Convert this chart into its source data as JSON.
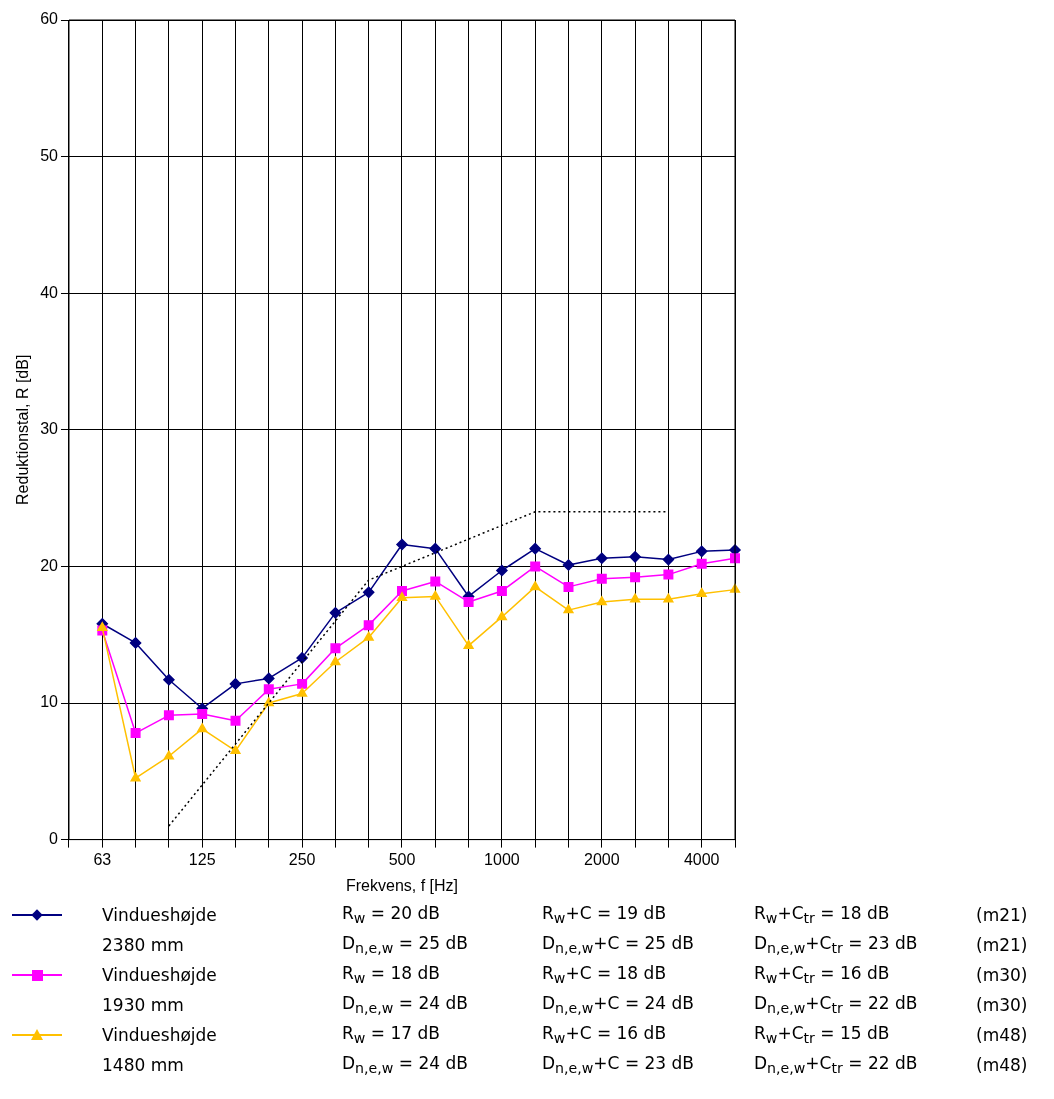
{
  "chart_data": {
    "type": "line",
    "xlabel": "Frekvens, f [Hz]",
    "ylabel": "Reduktionstal, R [dB]",
    "categories": [
      null,
      "63",
      null,
      null,
      "125",
      null,
      null,
      "250",
      null,
      null,
      "500",
      null,
      null,
      "1000",
      null,
      null,
      "2000",
      null,
      null,
      "4000",
      null
    ],
    "series": [
      {
        "name": "Vindueshøjde 2380 mm",
        "color": "#000080",
        "marker": "diamond",
        "values": [
          null,
          15.8,
          14.4,
          11.7,
          9.6,
          11.4,
          11.8,
          13.3,
          16.6,
          18.1,
          21.6,
          21.3,
          17.8,
          19.7,
          21.3,
          20.1,
          20.6,
          20.7,
          20.5,
          21.1,
          21.2
        ]
      },
      {
        "name": "Vindueshøjde 1930 mm",
        "color": "#ff00ff",
        "marker": "square",
        "values": [
          null,
          15.3,
          7.8,
          9.1,
          9.2,
          8.7,
          11.0,
          11.4,
          14.0,
          15.7,
          18.2,
          18.9,
          17.4,
          18.2,
          20.0,
          18.5,
          19.1,
          19.2,
          19.4,
          20.2,
          20.6
        ]
      },
      {
        "name": "Vindueshøjde 1480 mm",
        "color": "#ffc000",
        "marker": "triangle",
        "values": [
          null,
          15.5,
          4.5,
          6.1,
          8.1,
          6.5,
          10.0,
          10.7,
          13.0,
          14.8,
          17.7,
          17.8,
          14.2,
          16.3,
          18.5,
          16.8,
          17.4,
          17.6,
          17.6,
          18.0,
          18.3
        ]
      },
      {
        "color": "#000000",
        "marker": "none",
        "line_style": "dotted",
        "values": [
          null,
          null,
          null,
          1,
          4,
          7,
          10,
          13,
          16,
          19,
          20,
          21,
          22,
          23,
          24,
          24,
          24,
          24,
          24,
          null,
          null
        ]
      }
    ],
    "ylim": [
      0,
      60
    ],
    "yticks": [
      0,
      10,
      20,
      30,
      40,
      50,
      60
    ],
    "grid": true,
    "legend": "bottom",
    "annotations": [
      "R$_{w}$ = 20 dB",
      "R$_{w}$+C = 19 dB",
      "R$_{w}$+C$_{tr}$ = 18 dB",
      "(m21)",
      "D$_{n,e,w}$ = 25 dB",
      "D$_{n,e,w}$+C = 25 dB",
      "D$_{n,e,w}$+C$_{tr}$ = 23 dB",
      "(m21)",
      "R$_{w}$ = 18 dB",
      "R$_{w}$+C = 18 dB",
      "R$_{w}$+C$_{tr}$ = 16 dB",
      "(m30)",
      "D$_{n,e,w}$ = 24 dB",
      "D$_{n,e,w}$+C = 24 dB",
      "D$_{n,e,w}$+C$_{tr}$ = 22 dB",
      "(m30)",
      "R$_{w}$ = 17 dB",
      "R$_{w}$+C = 16 dB",
      "R$_{w}$+C$_{tr}$ = 15 dB",
      "(m48)",
      "D$_{n,e,w}$ = 24 dB",
      "D$_{n,e,w}$+C = 23 dB",
      "D$_{n,e,w}$+C$_{tr}$ = 22 dB",
      "(m48)"
    ]
  }
}
